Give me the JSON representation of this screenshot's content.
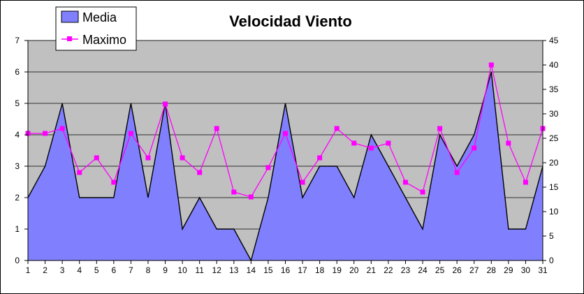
{
  "chart_data": {
    "type": "area",
    "title": "Velocidad Viento",
    "xlabel": "",
    "ylabel": "",
    "y2label": "",
    "x": [
      1,
      2,
      3,
      4,
      5,
      6,
      7,
      8,
      9,
      10,
      11,
      12,
      13,
      14,
      15,
      16,
      17,
      18,
      19,
      20,
      21,
      22,
      23,
      24,
      25,
      26,
      27,
      28,
      29,
      30,
      31
    ],
    "ylim": [
      0,
      7
    ],
    "y2lim": [
      0,
      45
    ],
    "yticks": [
      0,
      1,
      2,
      3,
      4,
      5,
      6,
      7
    ],
    "y2ticks": [
      0,
      5,
      10,
      15,
      20,
      25,
      30,
      35,
      40,
      45
    ],
    "grid": true,
    "legend_position": "top-left",
    "series": [
      {
        "name": "Media",
        "type": "area",
        "axis": "left",
        "color": "#8080ff",
        "values": [
          2,
          3,
          5,
          2,
          2,
          2,
          5,
          2,
          5,
          1,
          2,
          1,
          1,
          0,
          2,
          5,
          2,
          3,
          3,
          2,
          4,
          3,
          2,
          1,
          4,
          3,
          4,
          6,
          1,
          1,
          3
        ]
      },
      {
        "name": "Maximo",
        "type": "line",
        "axis": "right",
        "color": "#ff00ff",
        "marker": "square",
        "values": [
          26,
          26,
          27,
          18,
          21,
          16,
          26,
          21,
          32,
          21,
          18,
          27,
          14,
          13,
          19,
          26,
          16,
          21,
          27,
          24,
          23,
          24,
          16,
          14,
          27,
          18,
          23,
          40,
          24,
          16,
          27
        ]
      }
    ],
    "plot_background": "#c0c0c0"
  }
}
